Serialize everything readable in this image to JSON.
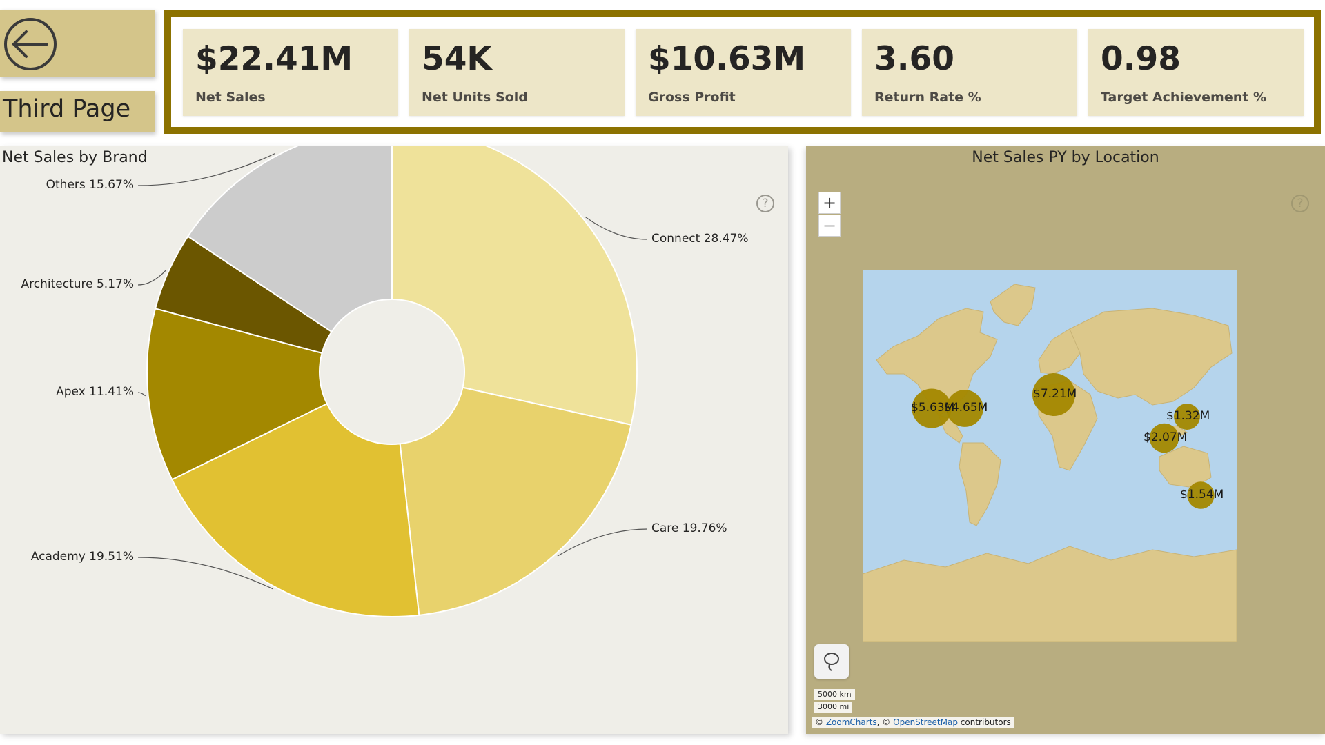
{
  "nav": {
    "page_title": "Third Page",
    "back_icon": "arrow-left-icon"
  },
  "kpis": [
    {
      "value": "$22.41M",
      "label": "Net Sales"
    },
    {
      "value": "54K",
      "label": "Net Units Sold"
    },
    {
      "value": "$10.63M",
      "label": "Gross Profit"
    },
    {
      "value": "3.60",
      "label": "Return Rate %"
    },
    {
      "value": "0.98",
      "label": "Target Achievement %"
    }
  ],
  "donut": {
    "title": "Net Sales by Brand",
    "help_icon": "question-circle-icon"
  },
  "chart_data": {
    "type": "pie",
    "variant": "donut",
    "title": "Net Sales by Brand",
    "categories": [
      "Connect",
      "Care",
      "Academy",
      "Apex",
      "Architecture",
      "Others"
    ],
    "values": [
      28.47,
      19.76,
      19.51,
      11.41,
      5.17,
      15.67
    ],
    "labels": [
      "Connect 28.47%",
      "Care 19.76%",
      "Academy 19.51%",
      "Apex 11.41%",
      "Architecture 5.17%",
      "Others 15.67%"
    ],
    "colors": [
      "#efe29a",
      "#e8d26c",
      "#e1c132",
      "#a38800",
      "#6b5600",
      "#cccccc"
    ]
  },
  "map": {
    "title": "Net Sales PY by Location",
    "zoom_in": "+",
    "zoom_out": "−",
    "scale_km": "5000 km",
    "scale_mi": "3000 mi",
    "attribution_prefix": "©",
    "attribution_zoom": "ZoomCharts",
    "attribution_mid": ", ©",
    "attribution_osm": "OpenStreetMap",
    "attribution_suffix": "contributors",
    "lasso_icon": "lasso-icon",
    "help_icon": "question-circle-icon",
    "bubbles": [
      {
        "label": "$5.63M",
        "value": 5.63
      },
      {
        "label": "$4.65M",
        "value": 4.65
      },
      {
        "label": "$7.21M",
        "value": 7.21
      },
      {
        "label": "$1.32M",
        "value": 1.32
      },
      {
        "label": "$2.07M",
        "value": 2.07
      },
      {
        "label": "$1.54M",
        "value": 1.54
      }
    ]
  }
}
